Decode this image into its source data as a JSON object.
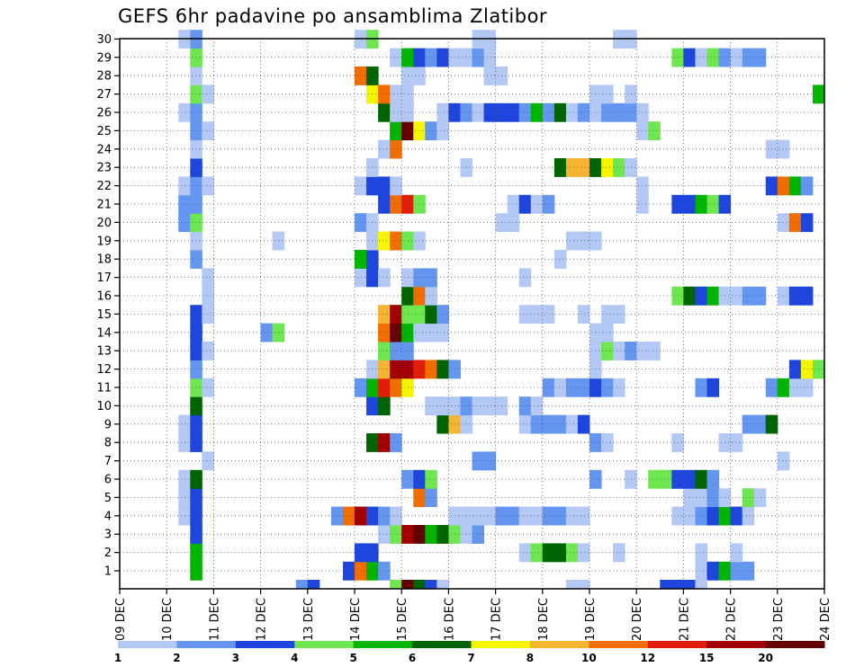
{
  "chart_data": {
    "type": "heatmap",
    "title": "GEFS 6hr padavine po ansamblima Zlatibor",
    "y_members": [
      1,
      2,
      3,
      4,
      5,
      6,
      7,
      8,
      9,
      10,
      11,
      12,
      13,
      14,
      15,
      16,
      17,
      18,
      19,
      20,
      21,
      22,
      23,
      24,
      25,
      26,
      27,
      28,
      29,
      30
    ],
    "x_ticks": [
      "09 DEC",
      "10 DEC",
      "11 DEC",
      "12 DEC",
      "13 DEC",
      "14 DEC",
      "15 DEC",
      "16 DEC",
      "17 DEC",
      "18 DEC",
      "19 DEC",
      "20 DEC",
      "21 DEC",
      "22 DEC",
      "23 DEC",
      "24 DEC"
    ],
    "x_unit": "6-hour step from 09 DEC 00Z",
    "colorbar": {
      "labels": [
        "1",
        "2",
        "3",
        "4",
        "5",
        "6",
        "7",
        "8",
        "10",
        "12",
        "15",
        "20"
      ],
      "colors": [
        "#b4c8f5",
        "#6496f0",
        "#1e46dc",
        "#6ee650",
        "#00b400",
        "#006400",
        "#f5f500",
        "#f5b432",
        "#f06e00",
        "#e11e0a",
        "#a00000",
        "#640000"
      ]
    },
    "grid": true,
    "cells": [
      [
        1,
        17,
        1
      ],
      [
        1,
        17,
        2
      ],
      [
        1,
        17,
        3
      ],
      [
        1,
        17,
        4
      ],
      [
        1,
        17,
        5
      ],
      [
        1,
        17,
        6
      ],
      [
        1,
        17,
        7
      ],
      [
        1,
        17,
        8
      ],
      [
        1,
        17,
        9
      ],
      [
        1,
        17,
        10
      ],
      [
        1,
        17,
        11
      ],
      [
        1,
        17,
        12
      ],
      [
        1,
        17,
        13
      ],
      [
        1,
        17,
        14
      ],
      [
        1,
        17,
        15
      ],
      [
        1,
        17,
        16
      ],
      [
        1,
        17,
        17
      ],
      [
        1,
        17,
        18
      ],
      [
        1,
        17,
        19
      ],
      [
        1,
        17,
        20
      ],
      [
        1,
        17,
        21
      ],
      [
        1,
        17,
        22
      ],
      [
        1,
        17,
        23
      ],
      [
        1,
        17,
        24
      ],
      [
        1,
        17,
        25
      ],
      [
        1,
        17,
        26
      ],
      [
        1,
        17,
        27
      ],
      [
        1,
        17,
        28
      ],
      [
        1,
        17,
        29
      ],
      [
        1,
        17,
        30
      ],
      [
        0,
        17,
        5
      ],
      [
        1,
        17,
        5
      ],
      [
        0,
        17,
        6
      ],
      [
        1,
        17,
        6
      ],
      [
        0,
        17,
        9
      ],
      [
        1,
        17,
        9
      ],
      [
        0,
        17,
        8
      ],
      [
        0,
        17,
        20
      ],
      [
        1,
        17,
        20
      ],
      [
        0,
        17,
        21
      ],
      [
        1,
        17,
        21
      ],
      [
        0,
        17,
        22
      ],
      [
        1,
        17,
        22
      ],
      [
        0,
        17,
        26
      ],
      [
        1,
        17,
        26
      ],
      [
        1,
        17,
        30
      ],
      [
        0,
        17,
        30
      ],
      [
        3,
        17,
        1
      ],
      [
        3,
        17,
        2
      ],
      [
        3,
        17,
        3
      ],
      [
        3,
        17,
        4
      ],
      [
        3,
        17,
        5
      ],
      [
        3,
        17,
        6
      ],
      [
        3,
        17,
        8
      ],
      [
        3,
        17,
        9
      ],
      [
        3,
        17,
        12
      ],
      [
        3,
        17,
        13
      ],
      [
        3,
        17,
        14
      ],
      [
        3,
        17,
        15
      ],
      [
        3,
        17,
        17
      ],
      [
        3,
        17,
        18
      ],
      [
        3,
        17,
        21
      ],
      [
        3,
        17,
        22
      ],
      [
        3,
        17,
        23
      ],
      [
        3,
        17,
        24
      ],
      [
        3,
        17,
        25
      ],
      [
        3,
        17,
        26
      ],
      [
        3,
        17,
        29
      ],
      [
        3,
        17,
        30
      ]
    ],
    "cells_note": "each cell = [x_step, y_member, color_index]"
  }
}
